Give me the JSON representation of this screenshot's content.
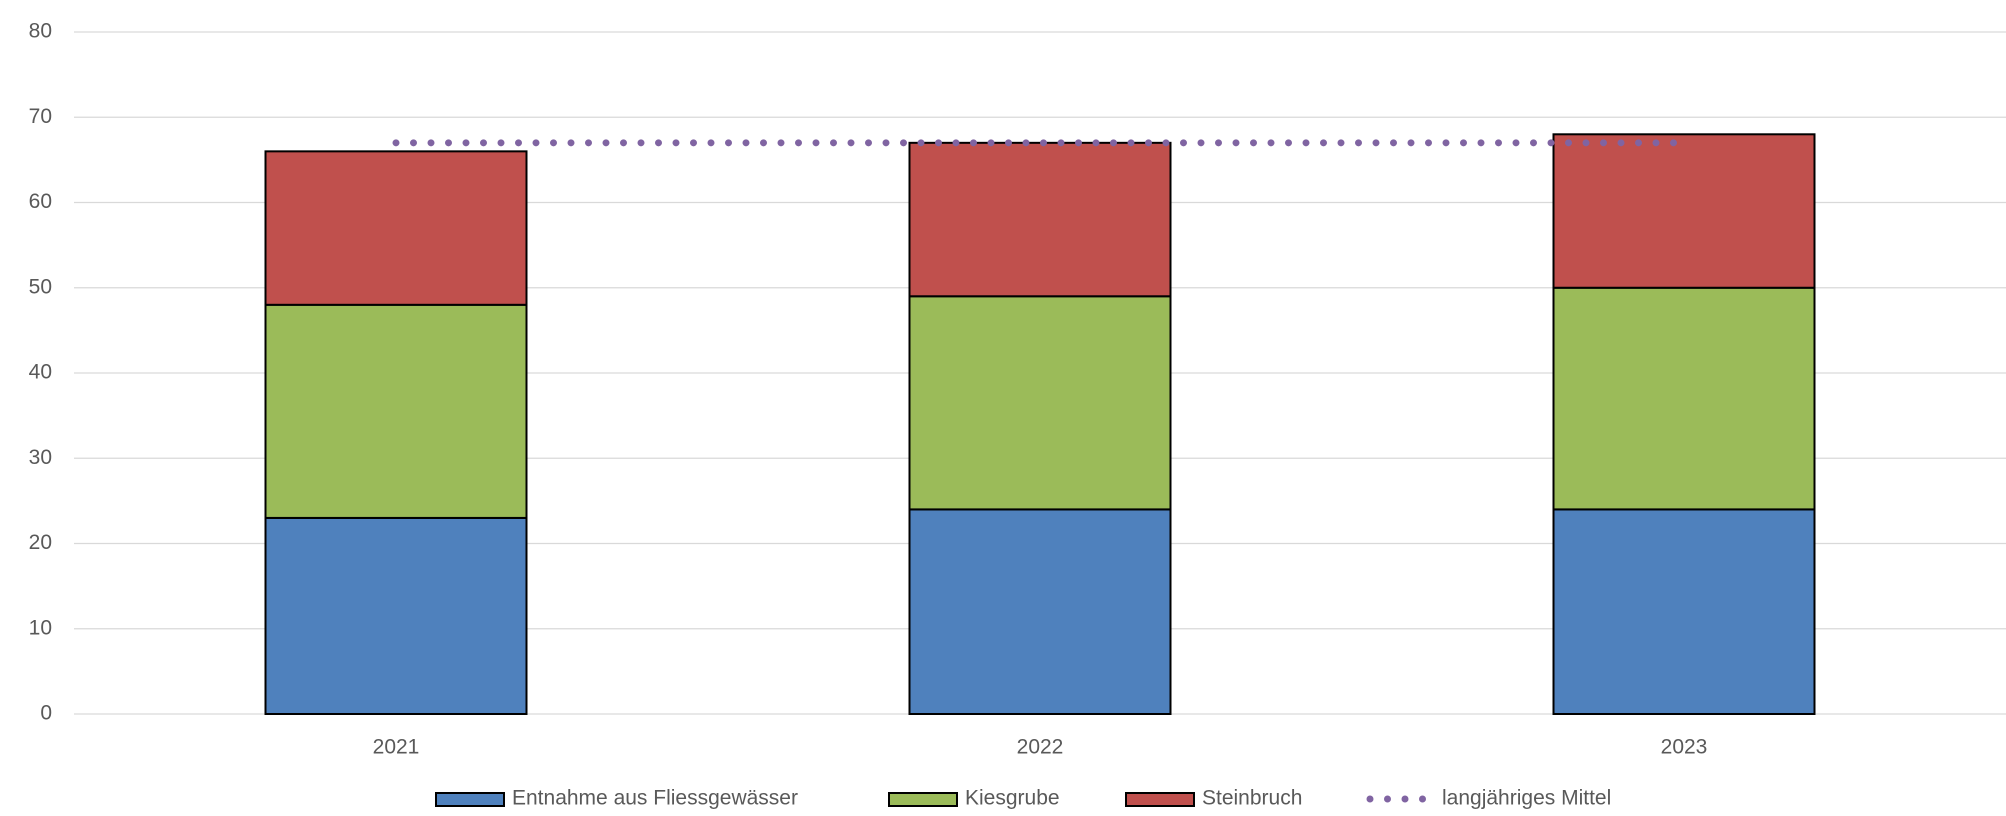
{
  "chart_data": {
    "type": "bar",
    "stacked": true,
    "categories": [
      "2021",
      "2022",
      "2023"
    ],
    "series": [
      {
        "name": "Entnahme aus Fliessgewässer",
        "color": "#4f81bd",
        "values": [
          23,
          24,
          24
        ]
      },
      {
        "name": "Kiesgrube",
        "color": "#9bbb59",
        "values": [
          25,
          25,
          26
        ]
      },
      {
        "name": "Steinbruch",
        "color": "#c0504d",
        "values": [
          18,
          18,
          18
        ]
      },
      {
        "name": "langjähriges Mittel",
        "color": "#8064a2",
        "type": "line",
        "values": [
          67,
          67,
          67
        ]
      }
    ],
    "ylim": [
      0,
      80
    ],
    "yticks": [
      0,
      10,
      20,
      30,
      40,
      50,
      60,
      70,
      80
    ],
    "grid": true,
    "legend": "bottom"
  }
}
